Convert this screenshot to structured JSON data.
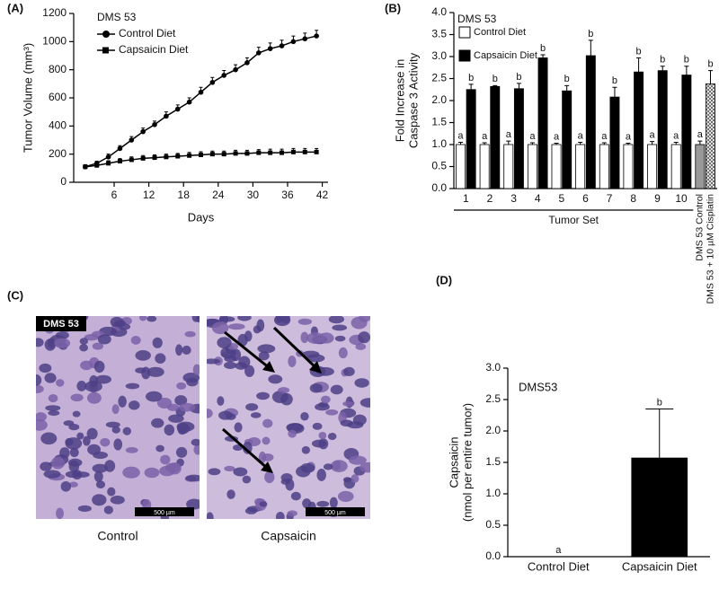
{
  "chart_data": [
    {
      "type": "line",
      "panel": "(A)",
      "legend_title": "DMS 53",
      "xlabel": "Days",
      "ylabel": "Tumor Volume (mm³)",
      "x": [
        1,
        3,
        5,
        7,
        9,
        11,
        13,
        15,
        17,
        19,
        21,
        23,
        25,
        27,
        29,
        31,
        33,
        35,
        37,
        39,
        41
      ],
      "series": [
        {
          "name": "Control Diet",
          "marker": "circle",
          "color": "#000",
          "values": [
            110,
            135,
            180,
            240,
            300,
            360,
            410,
            470,
            520,
            570,
            640,
            710,
            760,
            800,
            850,
            920,
            950,
            970,
            1000,
            1020,
            1040
          ],
          "errors": [
            10,
            15,
            20,
            20,
            25,
            25,
            25,
            30,
            30,
            30,
            35,
            35,
            35,
            35,
            35,
            40,
            40,
            40,
            40,
            40,
            40
          ]
        },
        {
          "name": "Capsaicin Diet",
          "marker": "square",
          "color": "#000",
          "values": [
            110,
            120,
            135,
            150,
            160,
            170,
            175,
            180,
            185,
            190,
            195,
            200,
            200,
            205,
            205,
            210,
            210,
            210,
            215,
            215,
            215
          ],
          "errors": [
            15,
            15,
            18,
            18,
            20,
            20,
            20,
            20,
            20,
            22,
            22,
            22,
            22,
            22,
            22,
            22,
            25,
            25,
            25,
            25,
            25
          ]
        }
      ],
      "xlim": [
        -1,
        43
      ],
      "xticks": [
        6,
        12,
        18,
        24,
        30,
        36,
        42
      ],
      "ylim": [
        0,
        1200
      ],
      "yticks": [
        0,
        200,
        400,
        600,
        800,
        1000,
        1200
      ]
    },
    {
      "type": "bar",
      "panel": "(B)",
      "legend_title": "DMS 53",
      "xlabel": "Tumor Set",
      "ylabel": [
        "Fold Increase in",
        "Caspase 3 Activity"
      ],
      "categories": [
        "1",
        "2",
        "3",
        "4",
        "5",
        "6",
        "7",
        "8",
        "9",
        "10"
      ],
      "series": [
        {
          "name": "Control Diet",
          "color": "#fff",
          "values": [
            1,
            1,
            1,
            1,
            1,
            1,
            1,
            1,
            1,
            1
          ],
          "errors": [
            0.05,
            0.04,
            0.08,
            0.04,
            0.03,
            0.05,
            0.04,
            0.03,
            0.07,
            0.05
          ],
          "letters": [
            "a",
            "a",
            "a",
            "a",
            "a",
            "a",
            "a",
            "a",
            "a",
            "a"
          ]
        },
        {
          "name": "Capsaicin Diet",
          "color": "#000",
          "values": [
            2.25,
            2.32,
            2.27,
            2.97,
            2.22,
            3.02,
            2.08,
            2.65,
            2.68,
            2.58
          ],
          "errors": [
            0.12,
            0.02,
            0.12,
            0.07,
            0.12,
            0.35,
            0.22,
            0.32,
            0.1,
            0.2
          ],
          "letters": [
            "b",
            "b",
            "b",
            "b",
            "b",
            "b",
            "b",
            "b",
            "b",
            "b"
          ]
        }
      ],
      "reference_bars": [
        {
          "name": "DMS 53 Control",
          "color": "#999",
          "value": 1,
          "error": 0.08,
          "letter": "a"
        },
        {
          "name": "DMS 53 + 10 µM Cisplatin",
          "color": "crosshatch",
          "value": 2.38,
          "error": 0.3,
          "letter": "b"
        }
      ],
      "ylim": [
        0,
        4
      ],
      "yticks": [
        {
          "value": 0,
          "label": "0.0"
        },
        {
          "value": 0.5,
          "label": "0.5"
        },
        {
          "value": 1,
          "label": "1.0"
        },
        {
          "value": 1.5,
          "label": "1.5"
        },
        {
          "value": 2,
          "label": "2.0"
        },
        {
          "value": 2.5,
          "label": "2.5"
        },
        {
          "value": 3,
          "label": "3.0"
        },
        {
          "value": 3.5,
          "label": "3.5"
        },
        {
          "value": 4,
          "label": "4.0"
        }
      ]
    },
    {
      "type": "bar",
      "panel": "(D)",
      "annotation": "DMS53",
      "ylabel": [
        "Capsaicin",
        "(nmol per entire tumor)"
      ],
      "categories": [
        "Control Diet",
        "Capsaicin Diet"
      ],
      "series": [
        {
          "color": "#000",
          "values": [
            0,
            1.57
          ],
          "errors": [
            0,
            0.78
          ],
          "letters": [
            "a",
            "b"
          ]
        }
      ],
      "ylim": [
        0,
        3
      ],
      "yticks": [
        {
          "value": 0,
          "label": "0.0"
        },
        {
          "value": 0.5,
          "label": "0.5"
        },
        {
          "value": 1,
          "label": "1.0"
        },
        {
          "value": 1.5,
          "label": "1.5"
        },
        {
          "value": 2,
          "label": "2.0"
        },
        {
          "value": 2.5,
          "label": "2.5"
        },
        {
          "value": 3,
          "label": "3.0"
        }
      ]
    }
  ],
  "panel_c": {
    "panel": "(C)",
    "badge": "DMS 53",
    "scale_left": "500 µm",
    "scale_right": "500 µm",
    "caption_left": "Control",
    "caption_right": "Capsaicin"
  }
}
